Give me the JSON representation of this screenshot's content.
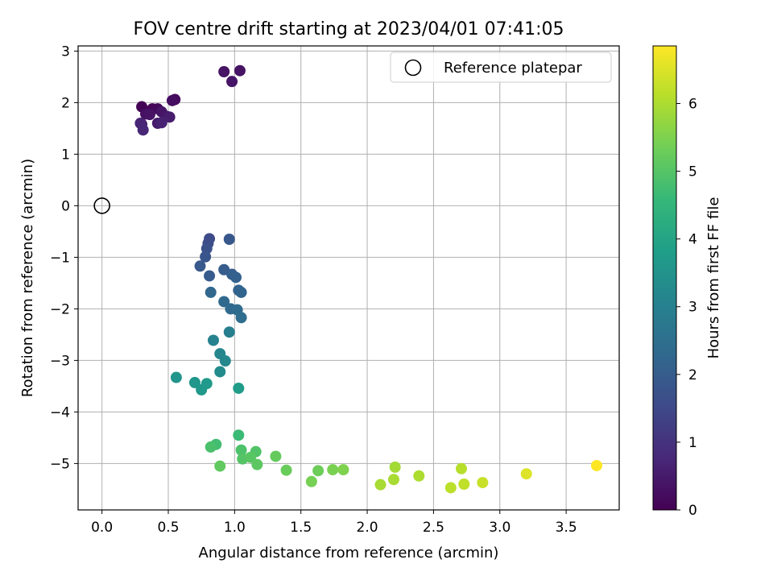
{
  "chart_data": {
    "type": "scatter",
    "title": "FOV centre drift starting at 2023/04/01 07:41:05",
    "xlabel": "Angular distance from reference (arcmin)",
    "ylabel": "Rotation from reference (arcmin)",
    "xlim": [
      -0.18,
      3.9
    ],
    "ylim": [
      -5.9,
      3.1
    ],
    "x_ticks": [
      "0.0",
      "0.5",
      "1.0",
      "1.5",
      "2.0",
      "2.5",
      "3.0",
      "3.5"
    ],
    "y_ticks": [
      "3",
      "2",
      "1",
      "0",
      "−1",
      "−2",
      "−3",
      "−4",
      "−5"
    ],
    "grid": true,
    "legend": {
      "position": "top-right",
      "entries": [
        {
          "label": "Reference platepar",
          "marker": "hollow-circle"
        }
      ]
    },
    "reference": {
      "x": 0.0,
      "y": 0.0
    },
    "colorbar": {
      "label": "Hours from first FF file",
      "min": 0,
      "max": 6.85,
      "ticks": [
        "0",
        "1",
        "2",
        "3",
        "4",
        "5",
        "6"
      ],
      "colormap": "viridis",
      "colors": [
        "#440154",
        "#482878",
        "#3e4a89",
        "#31688e",
        "#26828e",
        "#1f9e89",
        "#35b779",
        "#6ece58",
        "#b5de2b",
        "#fde725"
      ]
    },
    "series": [
      {
        "x": [
          0.92,
          1.04,
          0.98,
          0.3,
          0.38,
          0.42,
          0.55,
          0.53,
          0.33,
          0.36,
          0.45,
          0.49,
          0.42,
          0.51,
          0.3,
          0.45,
          0.29,
          0.31,
          0.81,
          0.8,
          0.79,
          0.78,
          0.96,
          0.74,
          0.81,
          0.92,
          0.98,
          1.01,
          1.03,
          1.05,
          0.82,
          0.92,
          0.97,
          1.02,
          1.05,
          0.96,
          0.84,
          0.89,
          0.93,
          0.89,
          0.56,
          0.7,
          0.75,
          0.79,
          1.03,
          1.03,
          0.86,
          0.82,
          1.05,
          1.16,
          1.06,
          1.12,
          1.17,
          0.89,
          1.31,
          1.39,
          1.63,
          1.58,
          1.74,
          1.82,
          2.21,
          2.2,
          2.1,
          2.39,
          2.71,
          2.63,
          2.73,
          2.87,
          3.2,
          3.73
        ],
        "y": [
          2.6,
          2.62,
          2.41,
          1.92,
          1.88,
          1.88,
          2.06,
          2.04,
          1.78,
          1.77,
          1.82,
          1.73,
          1.6,
          1.72,
          1.58,
          1.61,
          1.6,
          1.47,
          -0.64,
          -0.73,
          -0.83,
          -0.99,
          -0.65,
          -1.17,
          -1.36,
          -1.24,
          -1.33,
          -1.39,
          -1.64,
          -1.68,
          -1.68,
          -1.86,
          -2.0,
          -2.02,
          -2.17,
          -2.45,
          -2.61,
          -2.87,
          -3.01,
          -3.22,
          -3.33,
          -3.43,
          -3.57,
          -3.45,
          -3.54,
          -4.45,
          -4.63,
          -4.68,
          -4.74,
          -4.77,
          -4.91,
          -4.88,
          -5.02,
          -5.05,
          -4.86,
          -5.13,
          -5.14,
          -5.35,
          -5.12,
          -5.12,
          -5.07,
          -5.31,
          -5.41,
          -5.24,
          -5.1,
          -5.47,
          -5.4,
          -5.37,
          -5.2,
          -5.04
        ],
        "hours": [
          0.35,
          0.35,
          0.4,
          0.05,
          0.1,
          0.15,
          0.2,
          0.25,
          0.3,
          0.35,
          0.4,
          0.45,
          0.5,
          0.55,
          0.6,
          0.65,
          0.7,
          0.75,
          1.55,
          1.6,
          1.7,
          1.8,
          1.85,
          1.9,
          1.95,
          2.0,
          2.05,
          2.1,
          2.15,
          2.2,
          2.25,
          2.3,
          2.35,
          2.4,
          2.45,
          2.95,
          3.05,
          3.15,
          3.2,
          3.3,
          3.55,
          3.6,
          3.65,
          3.7,
          3.75,
          4.65,
          4.75,
          4.85,
          4.9,
          4.95,
          5.0,
          5.05,
          5.1,
          5.15,
          5.2,
          5.25,
          5.3,
          5.4,
          5.45,
          5.5,
          5.9,
          5.95,
          5.95,
          6.0,
          6.1,
          6.15,
          6.2,
          6.3,
          6.5,
          6.85
        ]
      }
    ]
  }
}
